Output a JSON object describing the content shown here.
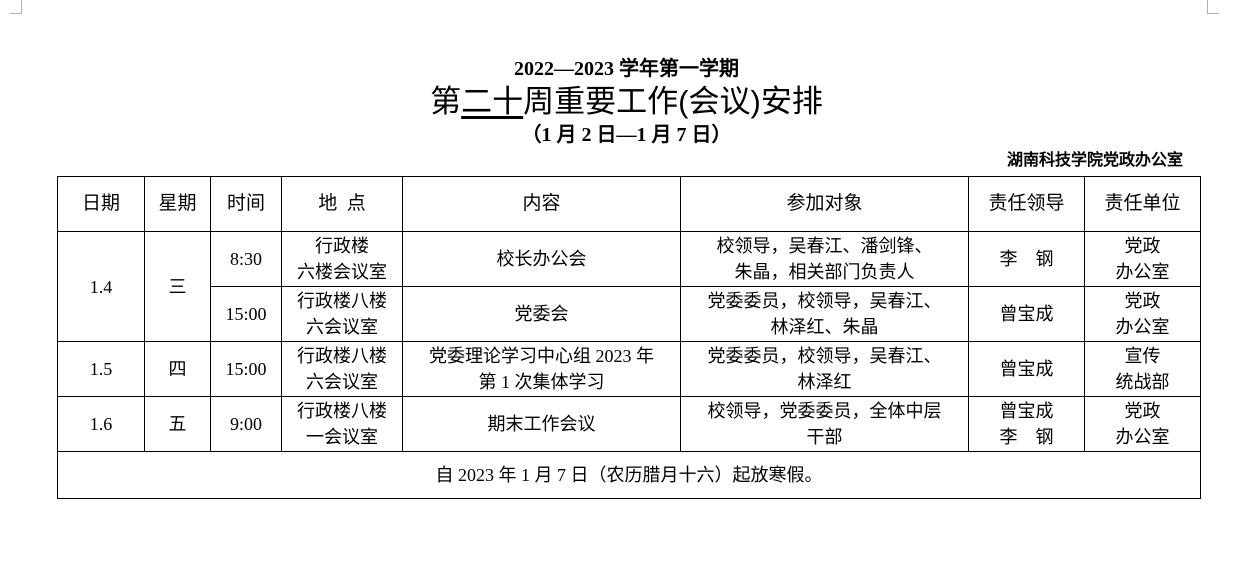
{
  "header": {
    "term": "2022—2023 学年第一学期",
    "title_prefix": "第",
    "title_week": "二十",
    "title_suffix": "周重要工作(会议)安排",
    "date_range": "（1 月 2 日—1 月 7 日）",
    "office": "湖南科技学院党政办公室"
  },
  "table": {
    "columns": [
      "日期",
      "星期",
      "时间",
      "地  点",
      "内容",
      "参加对象",
      "责任领导",
      "责任单位"
    ],
    "groups": [
      {
        "date": "1.4",
        "weekday": "三",
        "rows": [
          {
            "time": "8:30",
            "place": [
              "行政楼",
              "六楼会议室"
            ],
            "content": [
              "校长办公会"
            ],
            "attendees": [
              "校领导，吴春江、潘剑锋、",
              "朱晶，相关部门负责人"
            ],
            "leader": [
              "李　钢"
            ],
            "unit": [
              "党政",
              "办公室"
            ]
          },
          {
            "time": "15:00",
            "place": [
              "行政楼八楼",
              "六会议室"
            ],
            "content": [
              "党委会"
            ],
            "attendees": [
              "党委委员，校领导，吴春江、",
              "林泽红、朱晶"
            ],
            "leader": [
              "曾宝成"
            ],
            "unit": [
              "党政",
              "办公室"
            ]
          }
        ]
      },
      {
        "date": "1.5",
        "weekday": "四",
        "rows": [
          {
            "time": "15:00",
            "place": [
              "行政楼八楼",
              "六会议室"
            ],
            "content": [
              "党委理论学习中心组 2023 年",
              "第 1 次集体学习"
            ],
            "attendees": [
              "党委委员，校领导，吴春江、",
              "林泽红"
            ],
            "leader": [
              "曾宝成"
            ],
            "unit": [
              "宣传",
              "统战部"
            ]
          }
        ]
      },
      {
        "date": "1.6",
        "weekday": "五",
        "rows": [
          {
            "time": "9:00",
            "place": [
              "行政楼八楼",
              "一会议室"
            ],
            "content": [
              "期末工作会议"
            ],
            "attendees": [
              "校领导，党委委员，全体中层",
              "干部"
            ],
            "leader": [
              "曾宝成",
              "李　钢"
            ],
            "unit": [
              "党政",
              "办公室"
            ]
          }
        ]
      }
    ],
    "footer": "自 2023 年 1 月 7 日（农历腊月十六）起放寒假。"
  }
}
